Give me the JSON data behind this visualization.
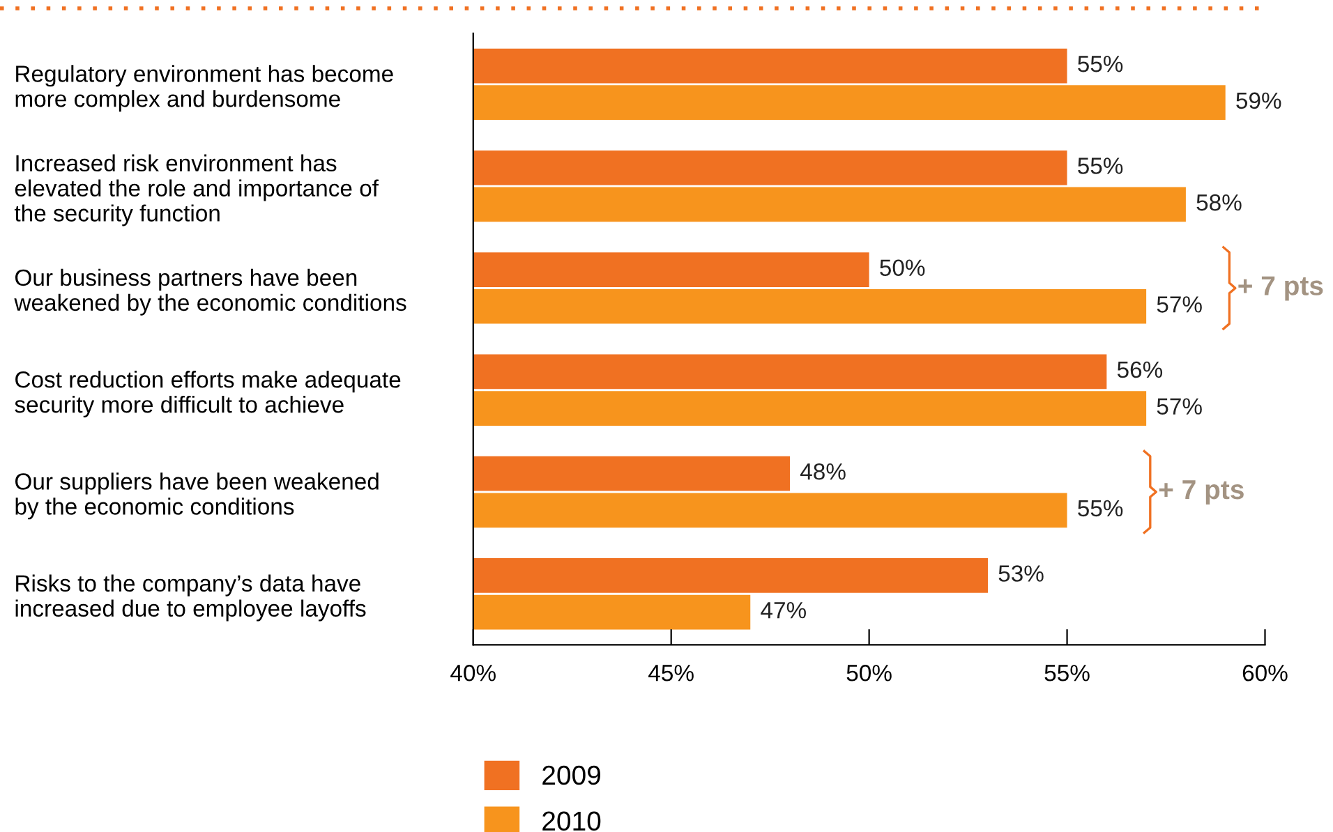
{
  "chart_data": {
    "type": "bar",
    "orientation": "horizontal",
    "categories": [
      "Regulatory environment has become\nmore complex and burdensome",
      "Increased risk environment has\nelevated the role and importance of\nthe security function",
      "Our business partners have been\nweakened by the economic conditions",
      "Cost reduction efforts make adequate\nsecurity more difficult to achieve",
      "Our suppliers have been weakened\nby the economic conditions",
      "Risks to the company’s data have\nincreased due to employee layoffs"
    ],
    "series": [
      {
        "name": "2009",
        "color": "#f07122",
        "values": [
          55,
          55,
          50,
          56,
          48,
          53
        ],
        "value_labels": [
          "55%",
          "55%",
          "50%",
          "56%",
          "48%",
          "53%"
        ]
      },
      {
        "name": "2010",
        "color": "#f7941d",
        "values": [
          59,
          58,
          57,
          57,
          55,
          47
        ],
        "value_labels": [
          "59%",
          "58%",
          "57%",
          "57%",
          "55%",
          "47%"
        ]
      }
    ],
    "xlim": [
      40,
      60
    ],
    "xticks": [
      {
        "value": 40,
        "label": "40%"
      },
      {
        "value": 45,
        "label": "45%"
      },
      {
        "value": 50,
        "label": "50%"
      },
      {
        "value": 55,
        "label": "55%"
      },
      {
        "value": 60,
        "label": "60%"
      }
    ],
    "annotations": [
      "+ 7 pts",
      "+ 7 pts"
    ],
    "grid": false,
    "legend": "bottom"
  }
}
